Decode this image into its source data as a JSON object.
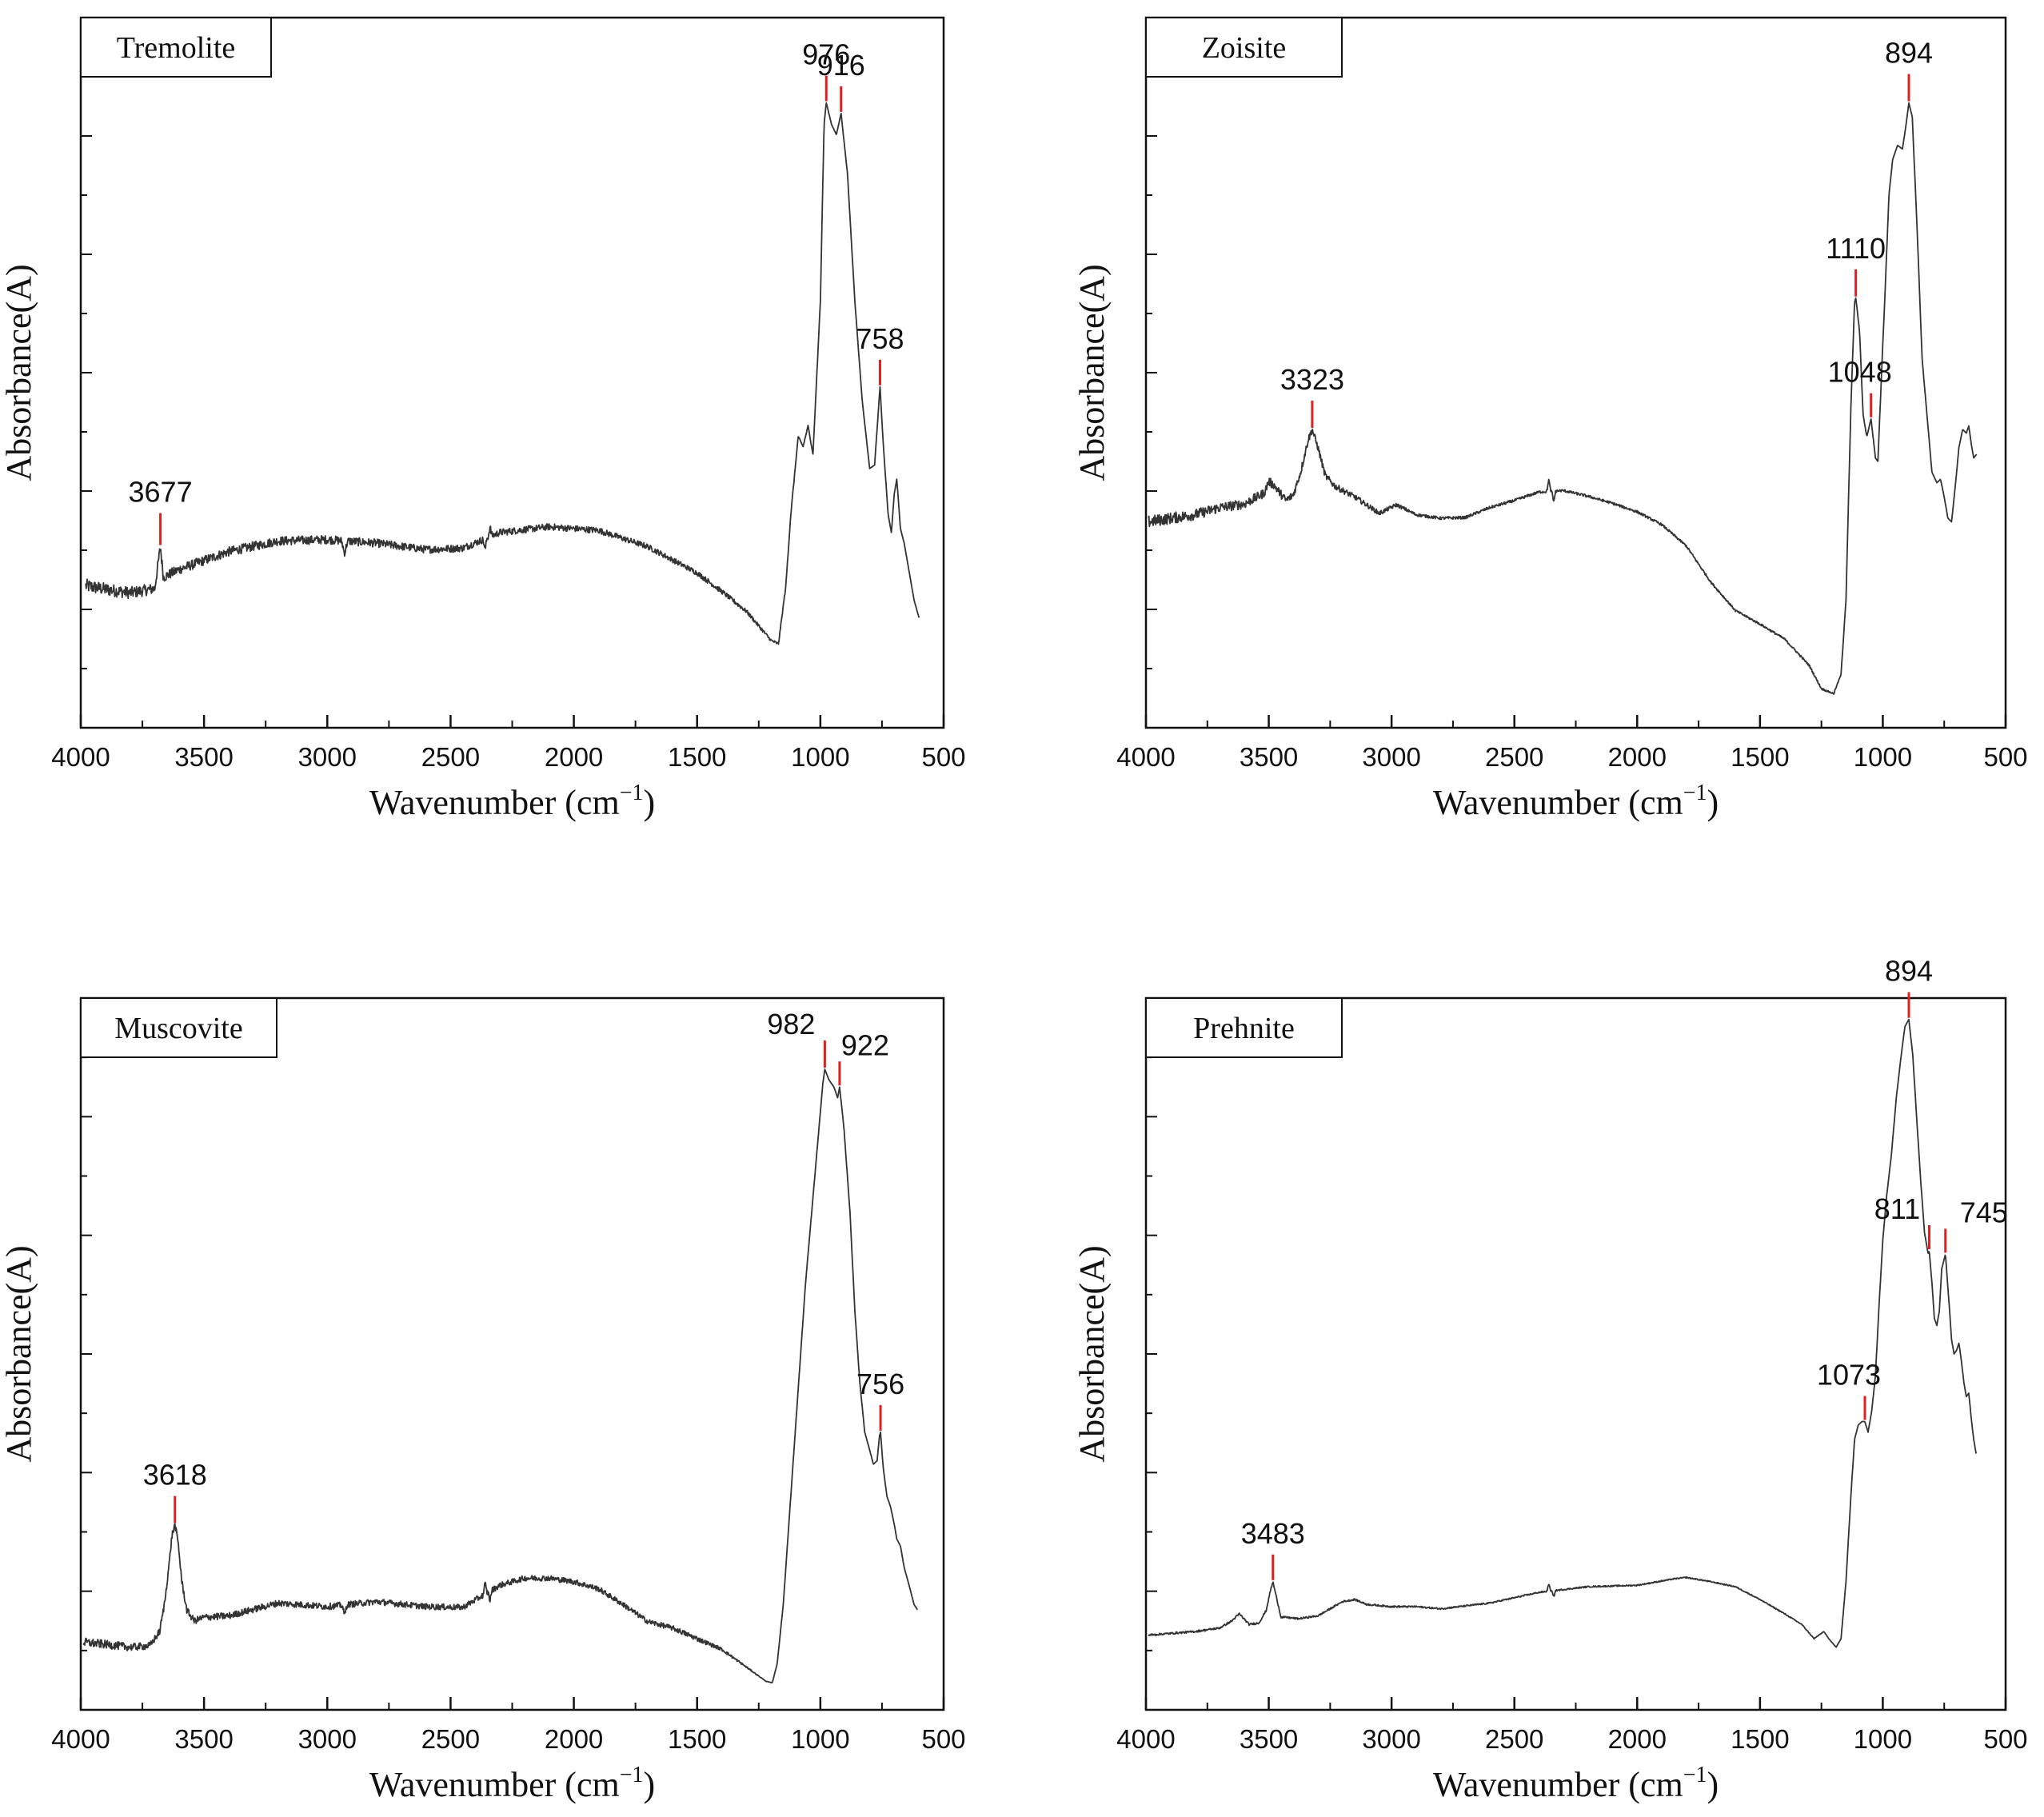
{
  "chart_data": [
    {
      "type": "line",
      "title": "Tremolite",
      "xlabel": "Wavenumber (cm",
      "xlabel_sup": "−1",
      "xlabel_close": ")",
      "ylabel": "Absorbance(A)",
      "xlim": [
        4000,
        500
      ],
      "xticks": [
        4000,
        3500,
        3000,
        2500,
        2000,
        1500,
        1000,
        500
      ],
      "ylim": [
        0,
        100
      ],
      "baseline_noise": [
        [
          4000,
          0.7
        ],
        [
          3600,
          0.5
        ],
        [
          1400,
          0.25
        ],
        [
          900,
          0.0
        ]
      ],
      "dips": [
        [
          2930,
          -1.6,
          8
        ],
        [
          2360,
          -1.5,
          5
        ],
        [
          2340,
          1.2,
          5
        ]
      ],
      "spectrum": [
        [
          3980,
          20
        ],
        [
          3900,
          19.5
        ],
        [
          3800,
          19.0
        ],
        [
          3700,
          19.6
        ],
        [
          3677,
          25.5
        ],
        [
          3665,
          21.2
        ],
        [
          3600,
          22.3
        ],
        [
          3400,
          24.8
        ],
        [
          3200,
          26.3
        ],
        [
          3000,
          26.5
        ],
        [
          2800,
          26.0
        ],
        [
          2600,
          25.1
        ],
        [
          2450,
          25.3
        ],
        [
          2300,
          27.5
        ],
        [
          2100,
          28.3
        ],
        [
          1900,
          27.8
        ],
        [
          1700,
          25.5
        ],
        [
          1500,
          21.8
        ],
        [
          1400,
          19.2
        ],
        [
          1300,
          16.4
        ],
        [
          1200,
          12.3
        ],
        [
          1170,
          11.8
        ],
        [
          1140,
          20.0
        ],
        [
          1120,
          30.0
        ],
        [
          1090,
          41.0
        ],
        [
          1070,
          39.6
        ],
        [
          1050,
          42.5
        ],
        [
          1030,
          38.5
        ],
        [
          1000,
          60.0
        ],
        [
          985,
          85.0
        ],
        [
          976,
          88.0
        ],
        [
          955,
          85.0
        ],
        [
          935,
          83.5
        ],
        [
          916,
          86.5
        ],
        [
          890,
          78.0
        ],
        [
          860,
          60.0
        ],
        [
          830,
          46.0
        ],
        [
          800,
          36.5
        ],
        [
          780,
          37.0
        ],
        [
          770,
          42.0
        ],
        [
          758,
          48.0
        ],
        [
          745,
          40.0
        ],
        [
          725,
          30.0
        ],
        [
          712,
          27.5
        ],
        [
          700,
          33.0
        ],
        [
          690,
          35.0
        ],
        [
          675,
          28.0
        ],
        [
          660,
          26.0
        ],
        [
          640,
          22.0
        ],
        [
          620,
          18.0
        ],
        [
          600,
          15.5
        ]
      ],
      "peaks": [
        {
          "label": "3677",
          "x": 3677
        },
        {
          "label": "976",
          "x": 976
        },
        {
          "label": "916",
          "x": 916
        },
        {
          "label": "758",
          "x": 758
        }
      ]
    },
    {
      "type": "line",
      "title": "Zoisite",
      "xlabel": "Wavenumber (cm",
      "xlabel_sup": "−1",
      "xlabel_close": ")",
      "ylabel": "Absorbance(A)",
      "xlim": [
        4000,
        500
      ],
      "xticks": [
        4000,
        3500,
        3000,
        2500,
        2000,
        1500,
        1000,
        500
      ],
      "ylim": [
        0,
        100
      ],
      "baseline_noise": [
        [
          4000,
          0.6
        ],
        [
          3500,
          0.45
        ],
        [
          2900,
          0.15
        ],
        [
          1300,
          0.1
        ],
        [
          900,
          0.0
        ]
      ],
      "dips": [
        [
          2360,
          1.6,
          5
        ],
        [
          2340,
          -1.4,
          5
        ],
        [
          3500,
          1.0,
          12
        ]
      ],
      "spectrum": [
        [
          3990,
          29.0
        ],
        [
          3900,
          29.5
        ],
        [
          3800,
          30.0
        ],
        [
          3700,
          31.0
        ],
        [
          3600,
          31.5
        ],
        [
          3520,
          33.0
        ],
        [
          3480,
          34.2
        ],
        [
          3430,
          32.0
        ],
        [
          3400,
          32.8
        ],
        [
          3370,
          36.0
        ],
        [
          3340,
          40.5
        ],
        [
          3323,
          42.0
        ],
        [
          3300,
          39.5
        ],
        [
          3270,
          35.5
        ],
        [
          3230,
          34.0
        ],
        [
          3150,
          32.5
        ],
        [
          3050,
          30.2
        ],
        [
          2980,
          31.4
        ],
        [
          2900,
          30.0
        ],
        [
          2800,
          29.5
        ],
        [
          2700,
          29.6
        ],
        [
          2600,
          31.0
        ],
        [
          2500,
          32.0
        ],
        [
          2400,
          33.2
        ],
        [
          2300,
          33.4
        ],
        [
          2200,
          32.6
        ],
        [
          2100,
          31.6
        ],
        [
          2000,
          30.4
        ],
        [
          1900,
          28.6
        ],
        [
          1800,
          25.6
        ],
        [
          1700,
          20.5
        ],
        [
          1600,
          16.5
        ],
        [
          1500,
          14.6
        ],
        [
          1400,
          12.5
        ],
        [
          1300,
          8.8
        ],
        [
          1250,
          5.5
        ],
        [
          1200,
          4.8
        ],
        [
          1170,
          7.5
        ],
        [
          1150,
          18.0
        ],
        [
          1130,
          45.0
        ],
        [
          1115,
          60.0
        ],
        [
          1110,
          60.5
        ],
        [
          1095,
          56.0
        ],
        [
          1080,
          44.0
        ],
        [
          1065,
          41.0
        ],
        [
          1048,
          43.5
        ],
        [
          1030,
          38.0
        ],
        [
          1020,
          37.5
        ],
        [
          1005,
          50.0
        ],
        [
          990,
          62.0
        ],
        [
          975,
          75.0
        ],
        [
          960,
          80.0
        ],
        [
          940,
          82.0
        ],
        [
          920,
          81.5
        ],
        [
          905,
          85.0
        ],
        [
          894,
          88.0
        ],
        [
          880,
          86.0
        ],
        [
          860,
          70.0
        ],
        [
          840,
          52.0
        ],
        [
          820,
          44.0
        ],
        [
          800,
          36.0
        ],
        [
          780,
          34.5
        ],
        [
          765,
          35.0
        ],
        [
          750,
          32.5
        ],
        [
          735,
          29.5
        ],
        [
          720,
          29.0
        ],
        [
          705,
          34.0
        ],
        [
          690,
          39.5
        ],
        [
          675,
          42.0
        ],
        [
          660,
          41.5
        ],
        [
          650,
          42.5
        ],
        [
          640,
          40.0
        ],
        [
          630,
          38.0
        ],
        [
          618,
          38.5
        ]
      ],
      "peaks": [
        {
          "label": "3323",
          "x": 3323
        },
        {
          "label": "1110",
          "x": 1110
        },
        {
          "label": "1048",
          "x": 1048
        },
        {
          "label": "894",
          "x": 894
        }
      ]
    },
    {
      "type": "line",
      "title": "Muscovite",
      "xlabel": "Wavenumber (cm",
      "xlabel_sup": "−1",
      "xlabel_close": ")",
      "ylabel": "Absorbance(A)",
      "xlim": [
        4000,
        500
      ],
      "xticks": [
        4000,
        3500,
        3000,
        2500,
        2000,
        1500,
        1000,
        500
      ],
      "ylim": [
        0,
        100
      ],
      "baseline_noise": [
        [
          4000,
          0.45
        ],
        [
          3700,
          0.35
        ],
        [
          1500,
          0.25
        ],
        [
          1200,
          0.0
        ]
      ],
      "dips": [
        [
          2930,
          -1.4,
          6
        ],
        [
          2360,
          1.4,
          5
        ],
        [
          2340,
          -1.2,
          5
        ]
      ],
      "spectrum": [
        [
          3990,
          9.5
        ],
        [
          3900,
          9.2
        ],
        [
          3800,
          8.8
        ],
        [
          3720,
          9.0
        ],
        [
          3680,
          11.0
        ],
        [
          3660,
          15.0
        ],
        [
          3640,
          21.0
        ],
        [
          3630,
          24.5
        ],
        [
          3618,
          26.0
        ],
        [
          3605,
          23.5
        ],
        [
          3590,
          18.0
        ],
        [
          3570,
          14.0
        ],
        [
          3540,
          12.5
        ],
        [
          3500,
          13.0
        ],
        [
          3400,
          13.2
        ],
        [
          3200,
          15.0
        ],
        [
          3000,
          14.5
        ],
        [
          2800,
          15.2
        ],
        [
          2600,
          14.5
        ],
        [
          2450,
          14.4
        ],
        [
          2300,
          17.5
        ],
        [
          2200,
          18.5
        ],
        [
          2100,
          18.5
        ],
        [
          2000,
          18.0
        ],
        [
          1900,
          17.0
        ],
        [
          1800,
          14.8
        ],
        [
          1700,
          12.4
        ],
        [
          1600,
          11.5
        ],
        [
          1500,
          10.0
        ],
        [
          1400,
          8.5
        ],
        [
          1300,
          6.0
        ],
        [
          1220,
          4.0
        ],
        [
          1195,
          3.8
        ],
        [
          1175,
          6.5
        ],
        [
          1150,
          15.0
        ],
        [
          1120,
          30.0
        ],
        [
          1090,
          45.0
        ],
        [
          1060,
          60.0
        ],
        [
          1030,
          72.0
        ],
        [
          1000,
          84.0
        ],
        [
          990,
          88.0
        ],
        [
          982,
          90.0
        ],
        [
          965,
          88.5
        ],
        [
          945,
          87.5
        ],
        [
          930,
          86.0
        ],
        [
          922,
          87.5
        ],
        [
          905,
          82.0
        ],
        [
          880,
          70.0
        ],
        [
          860,
          56.0
        ],
        [
          840,
          46.0
        ],
        [
          820,
          39.0
        ],
        [
          800,
          36.5
        ],
        [
          785,
          34.5
        ],
        [
          770,
          35.0
        ],
        [
          760,
          38.5
        ],
        [
          756,
          39.0
        ],
        [
          745,
          34.0
        ],
        [
          730,
          30.0
        ],
        [
          715,
          28.5
        ],
        [
          700,
          26.0
        ],
        [
          690,
          24.0
        ],
        [
          675,
          23.0
        ],
        [
          660,
          20.0
        ],
        [
          640,
          17.5
        ],
        [
          620,
          14.8
        ],
        [
          605,
          14.0
        ]
      ],
      "peaks": [
        {
          "label": "3618",
          "x": 3618
        },
        {
          "label": "982",
          "x": 982
        },
        {
          "label": "922",
          "x": 922
        },
        {
          "label": "756",
          "x": 756
        }
      ]
    },
    {
      "type": "line",
      "title": "Prehnite",
      "xlabel": "Wavenumber (cm",
      "xlabel_sup": "−1",
      "xlabel_close": ")",
      "ylabel": "Absorbance(A)",
      "xlim": [
        4000,
        500
      ],
      "xticks": [
        4000,
        3500,
        3000,
        2500,
        2000,
        1500,
        1000,
        500
      ],
      "ylim": [
        0,
        100
      ],
      "baseline_noise": [
        [
          4000,
          0.1
        ],
        [
          1300,
          0.05
        ],
        [
          1200,
          0.0
        ]
      ],
      "dips": [
        [
          2360,
          1.0,
          5
        ],
        [
          2340,
          -0.8,
          5
        ]
      ],
      "spectrum": [
        [
          3990,
          10.5
        ],
        [
          3800,
          11.0
        ],
        [
          3700,
          11.5
        ],
        [
          3650,
          12.5
        ],
        [
          3620,
          13.5
        ],
        [
          3580,
          12.0
        ],
        [
          3540,
          12.2
        ],
        [
          3510,
          14.0
        ],
        [
          3495,
          16.5
        ],
        [
          3483,
          18.0
        ],
        [
          3470,
          16.0
        ],
        [
          3450,
          13.0
        ],
        [
          3430,
          13.0
        ],
        [
          3380,
          12.8
        ],
        [
          3300,
          13.2
        ],
        [
          3200,
          15.2
        ],
        [
          3150,
          15.5
        ],
        [
          3100,
          14.8
        ],
        [
          3000,
          14.5
        ],
        [
          2900,
          14.5
        ],
        [
          2800,
          14.2
        ],
        [
          2600,
          15.0
        ],
        [
          2400,
          16.5
        ],
        [
          2200,
          17.3
        ],
        [
          2000,
          17.5
        ],
        [
          1850,
          18.4
        ],
        [
          1800,
          18.6
        ],
        [
          1700,
          18.0
        ],
        [
          1600,
          17.3
        ],
        [
          1500,
          15.5
        ],
        [
          1400,
          13.5
        ],
        [
          1330,
          12.0
        ],
        [
          1280,
          10.0
        ],
        [
          1240,
          11.0
        ],
        [
          1220,
          10.0
        ],
        [
          1190,
          8.8
        ],
        [
          1170,
          10.0
        ],
        [
          1150,
          18.0
        ],
        [
          1130,
          30.0
        ],
        [
          1115,
          38.0
        ],
        [
          1100,
          40.0
        ],
        [
          1085,
          40.5
        ],
        [
          1073,
          40.5
        ],
        [
          1060,
          39.0
        ],
        [
          1045,
          42.0
        ],
        [
          1030,
          47.0
        ],
        [
          1015,
          57.0
        ],
        [
          1000,
          66.0
        ],
        [
          985,
          72.0
        ],
        [
          965,
          78.0
        ],
        [
          945,
          86.0
        ],
        [
          925,
          92.0
        ],
        [
          910,
          96.0
        ],
        [
          894,
          97.0
        ],
        [
          878,
          92.0
        ],
        [
          860,
          82.0
        ],
        [
          845,
          74.0
        ],
        [
          830,
          67.0
        ],
        [
          815,
          64.0
        ],
        [
          811,
          64.5
        ],
        [
          800,
          60.0
        ],
        [
          790,
          55.0
        ],
        [
          780,
          54.0
        ],
        [
          770,
          56.0
        ],
        [
          760,
          62.0
        ],
        [
          745,
          64.0
        ],
        [
          730,
          57.0
        ],
        [
          720,
          52.0
        ],
        [
          710,
          50.0
        ],
        [
          700,
          50.5
        ],
        [
          690,
          51.5
        ],
        [
          680,
          49.0
        ],
        [
          670,
          46.0
        ],
        [
          660,
          44.0
        ],
        [
          650,
          44.5
        ],
        [
          640,
          41.0
        ],
        [
          630,
          38.0
        ],
        [
          620,
          36.0
        ]
      ],
      "peaks": [
        {
          "label": "3483",
          "x": 3483
        },
        {
          "label": "1073",
          "x": 1073
        },
        {
          "label": "811",
          "x": 811
        },
        {
          "label": "745",
          "x": 745
        },
        {
          "label": "894",
          "x": 894
        }
      ]
    }
  ],
  "colors": {
    "line": "#333333",
    "axis": "#111111",
    "peak_marker": "#e02020"
  }
}
